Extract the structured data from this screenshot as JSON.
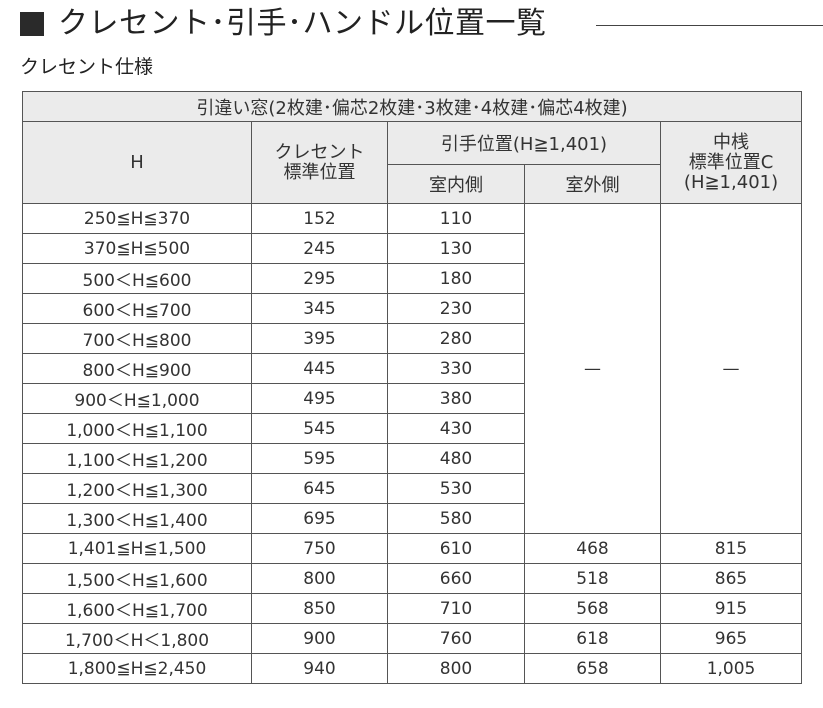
{
  "title": "クレセント･引手･ハンドル位置一覧",
  "subtitle": "クレセント仕様",
  "table": {
    "caption": "引違い窓(2枚建･偏芯2枚建･3枚建･4枚建･偏芯4枚建)",
    "headers": {
      "h": "H",
      "crescent_line1": "クレセント",
      "crescent_line2": "標準位置",
      "handle_group": "引手位置(H≧1,401)",
      "indoor": "室内側",
      "outdoor": "室外側",
      "mid_line1": "中桟",
      "mid_line2": "標準位置C",
      "mid_line3": "(H≧1,401)"
    },
    "dash": "—",
    "rows": [
      {
        "h": "250≦H≦370",
        "crescent": "152",
        "indoor": "110"
      },
      {
        "h": "370≦H≦500",
        "crescent": "245",
        "indoor": "130"
      },
      {
        "h": "500＜H≦600",
        "crescent": "295",
        "indoor": "180"
      },
      {
        "h": "600＜H≦700",
        "crescent": "345",
        "indoor": "230"
      },
      {
        "h": "700＜H≦800",
        "crescent": "395",
        "indoor": "280"
      },
      {
        "h": "800＜H≦900",
        "crescent": "445",
        "indoor": "330"
      },
      {
        "h": "900＜H≦1,000",
        "crescent": "495",
        "indoor": "380"
      },
      {
        "h": "1,000＜H≦1,100",
        "crescent": "545",
        "indoor": "430"
      },
      {
        "h": "1,100＜H≦1,200",
        "crescent": "595",
        "indoor": "480"
      },
      {
        "h": "1,200＜H≦1,300",
        "crescent": "645",
        "indoor": "530"
      },
      {
        "h": "1,300＜H≦1,400",
        "crescent": "695",
        "indoor": "580"
      },
      {
        "h": "1,401≦H≦1,500",
        "crescent": "750",
        "indoor": "610",
        "outdoor": "468",
        "mid": "815"
      },
      {
        "h": "1,500＜H≦1,600",
        "crescent": "800",
        "indoor": "660",
        "outdoor": "518",
        "mid": "865"
      },
      {
        "h": "1,600＜H≦1,700",
        "crescent": "850",
        "indoor": "710",
        "outdoor": "568",
        "mid": "915"
      },
      {
        "h": "1,700＜H＜1,800",
        "crescent": "900",
        "indoor": "760",
        "outdoor": "618",
        "mid": "965"
      },
      {
        "h": "1,800≦H≦2,450",
        "crescent": "940",
        "indoor": "800",
        "outdoor": "658",
        "mid": "1,005"
      }
    ]
  }
}
